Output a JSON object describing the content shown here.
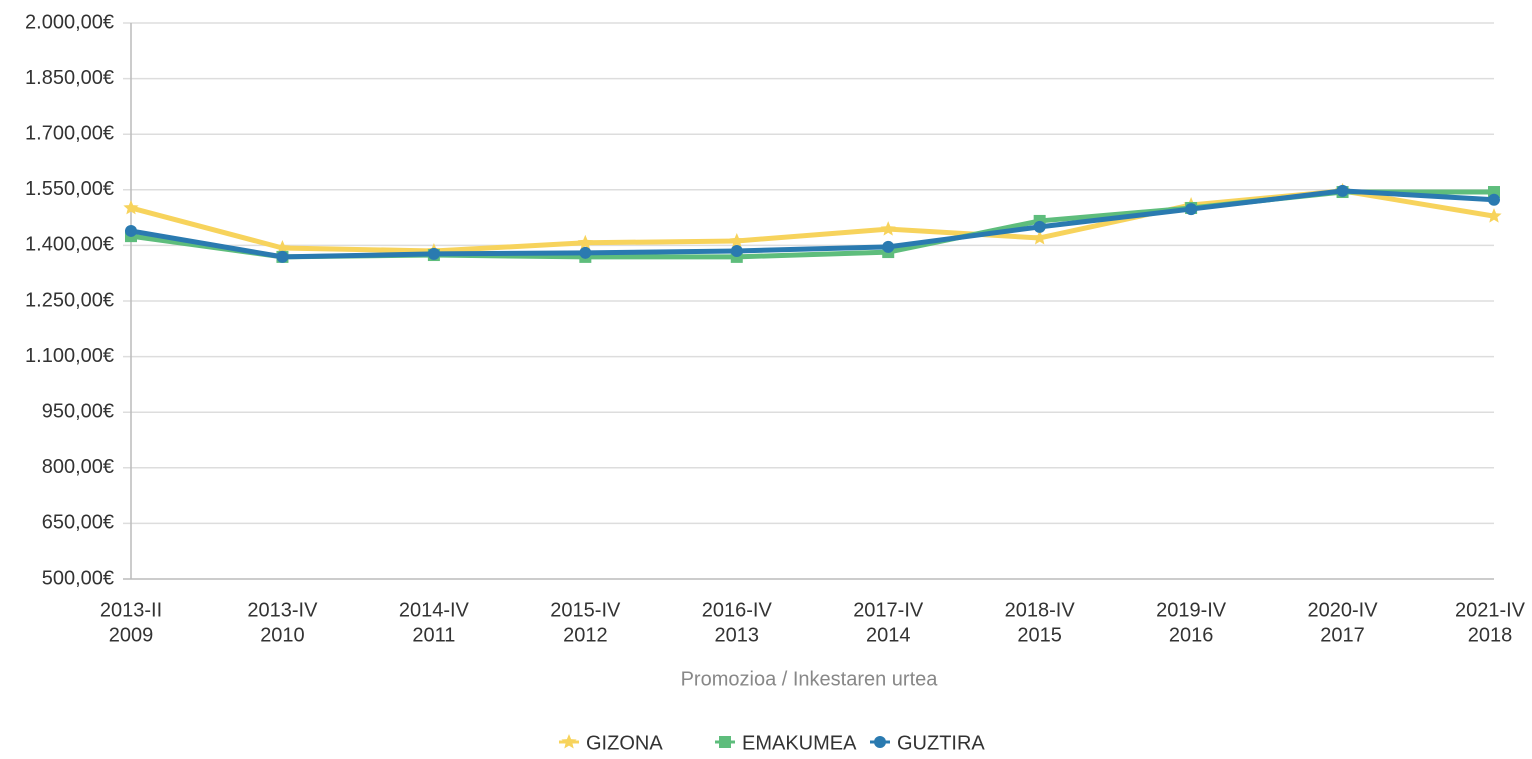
{
  "chart_data": {
    "type": "line",
    "categories": [
      [
        "2013-II",
        "2009"
      ],
      [
        "2013-IV",
        "2010"
      ],
      [
        "2014-IV",
        "2011"
      ],
      [
        "2015-IV",
        "2012"
      ],
      [
        "2016-IV",
        "2013"
      ],
      [
        "2017-IV",
        "2014"
      ],
      [
        "2018-IV",
        "2015"
      ],
      [
        "2019-IV",
        "2016"
      ],
      [
        "2020-IV",
        "2017"
      ],
      [
        "2021-IV",
        "2018"
      ]
    ],
    "series": [
      {
        "name": "GIZONA",
        "color": "#f7d35c",
        "marker": "star",
        "values": [
          1501,
          1393,
          1385,
          1407,
          1412,
          1444,
          1420,
          1509,
          1547,
          1479
        ]
      },
      {
        "name": "EMAKUMEA",
        "color": "#5ebd7c",
        "marker": "square",
        "values": [
          1425,
          1369,
          1374,
          1369,
          1369,
          1382,
          1466,
          1501,
          1544,
          1544
        ]
      },
      {
        "name": "GUZTIRA",
        "color": "#2a7ab0",
        "marker": "circle",
        "values": [
          1439,
          1369,
          1377,
          1380,
          1385,
          1396,
          1450,
          1498,
          1547,
          1523
        ]
      }
    ],
    "xlabel": "Promozioa / Inkestaren urtea",
    "ylim": [
      500,
      2000
    ],
    "yticks": [
      {
        "value": 500,
        "label": "500,00€"
      },
      {
        "value": 650,
        "label": "650,00€"
      },
      {
        "value": 800,
        "label": "800,00€"
      },
      {
        "value": 950,
        "label": "950,00€"
      },
      {
        "value": 1100,
        "label": "1.100,00€"
      },
      {
        "value": 1250,
        "label": "1.250,00€"
      },
      {
        "value": 1400,
        "label": "1.400,00€"
      },
      {
        "value": 1550,
        "label": "1.550,00€"
      },
      {
        "value": 1700,
        "label": "1.700,00€"
      },
      {
        "value": 1850,
        "label": "1.850,00€"
      },
      {
        "value": 2000,
        "label": "2.000,00€"
      }
    ],
    "grid": true,
    "legend": "bottom"
  }
}
